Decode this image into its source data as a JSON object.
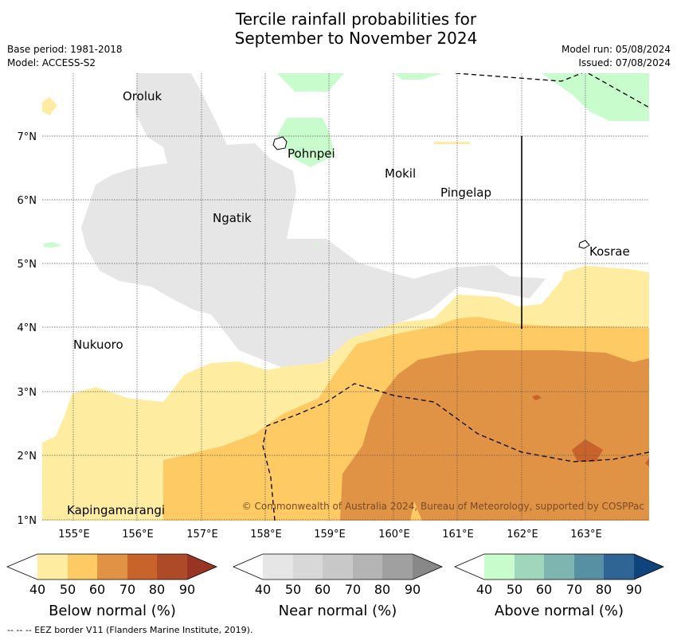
{
  "title": {
    "line1": "Tercile rainfall probabilities for",
    "line2": "September to November 2024"
  },
  "meta": {
    "base_period": "Base period: 1981-2018",
    "model": "Model: ACCESS-S2",
    "model_run": "Model run: 05/08/2024",
    "issued": "Issued: 07/08/2024"
  },
  "map": {
    "x_ticks": [
      "155°E",
      "156°E",
      "157°E",
      "158°E",
      "159°E",
      "160°E",
      "161°E",
      "162°E",
      "163°E"
    ],
    "y_ticks": [
      "7°N",
      "6°N",
      "5°N",
      "4°N",
      "3°N",
      "2°N",
      "1°N"
    ],
    "places": {
      "oroluk": "Oroluk",
      "pohnpei": "Pohnpei",
      "mokil": "Mokil",
      "pingelap": "Pingelap",
      "ngatik": "Ngatik",
      "kosrae": "Kosrae",
      "nukuoro": "Nukuoro",
      "kapingamarangi": "Kapingamarangi"
    },
    "credit": "© Commonwealth of Australia 2024, Bureau of Meteorology, supported by COSPPac"
  },
  "colorbars": {
    "ticks": [
      "40",
      "50",
      "60",
      "70",
      "80",
      "90"
    ],
    "below": {
      "title": "Below normal (%)",
      "colors": [
        "#ffffff",
        "#feeca0",
        "#fdca63",
        "#e09344",
        "#c9632c",
        "#ad4a28",
        "#983424"
      ]
    },
    "near": {
      "title": "Near normal (%)",
      "colors": [
        "#ffffff",
        "#e6e6e6",
        "#d8d8d8",
        "#c8c8c8",
        "#b4b4b4",
        "#a0a0a0",
        "#888888"
      ]
    },
    "above": {
      "title": "Above normal (%)",
      "colors": [
        "#ffffff",
        "#c8fccc",
        "#9fd6bc",
        "#7fb5b0",
        "#5890a3",
        "#2e6595",
        "#0e437c"
      ]
    }
  },
  "footer": "--  --  -- EEZ border V11 (Flanders Marine Institute, 2019)."
}
